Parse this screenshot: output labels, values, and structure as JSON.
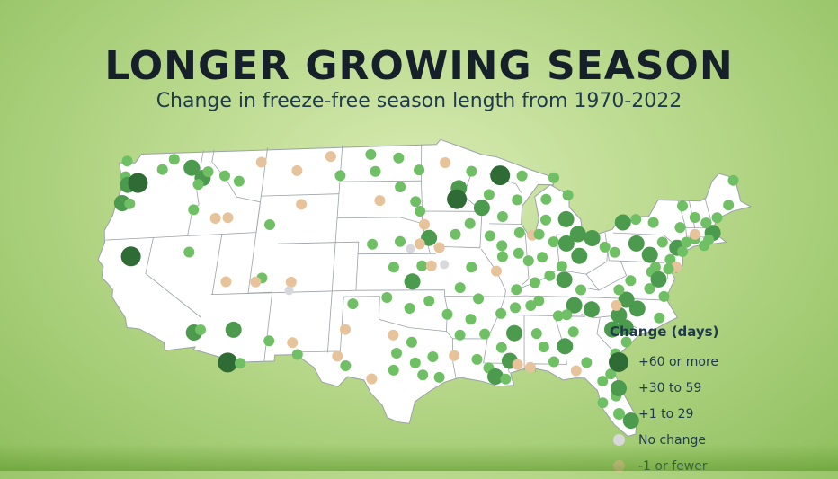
{
  "title": "LONGER GROWING SEASON",
  "subtitle": "Change in freeze-free season length from 1970-2022",
  "legend": {
    "title": "Change (days)",
    "items": [
      {
        "key": "c60",
        "label": "+60 or more",
        "color": "#2f6b34"
      },
      {
        "key": "c30",
        "label": "+30 to 59",
        "color": "#4c9a4d"
      },
      {
        "key": "c1",
        "label": "+1 to 29",
        "color": "#6fbf64"
      },
      {
        "key": "c0",
        "label": "No change",
        "color": "#d6d8dc"
      },
      {
        "key": "cn",
        "label": "-1 or fewer",
        "color": "#e6c39a"
      }
    ]
  },
  "colors": {
    "land": "#ffffff",
    "state_border": "#9aa2a8",
    "background": "#b9d98c"
  },
  "stations": [
    [
      "c1",
      -124.0,
      48.5
    ],
    [
      "c1",
      -123.8,
      47.2
    ],
    [
      "c30",
      -123.4,
      46.5
    ],
    [
      "c60",
      -122.5,
      46.6
    ],
    [
      "c30",
      -123.5,
      45.0
    ],
    [
      "c1",
      -122.8,
      44.9
    ],
    [
      "c1",
      -120.5,
      47.6
    ],
    [
      "c1",
      -119.6,
      48.4
    ],
    [
      "c30",
      -117.8,
      47.6
    ],
    [
      "c30",
      -116.6,
      46.7
    ],
    [
      "c1",
      -116.2,
      47.2
    ],
    [
      "c1",
      -116.9,
      46.2
    ],
    [
      "c1",
      -114.6,
      46.8
    ],
    [
      "c1",
      -113.2,
      46.3
    ],
    [
      "cn",
      -111.4,
      47.8
    ],
    [
      "c1",
      -116.9,
      44.1
    ],
    [
      "cn",
      -114.8,
      43.3
    ],
    [
      "cn",
      -113.7,
      43.3
    ],
    [
      "cn",
      -108.0,
      47.0
    ],
    [
      "cn",
      -105.0,
      48.1
    ],
    [
      "c1",
      -104.0,
      46.5
    ],
    [
      "cn",
      -107.3,
      44.2
    ],
    [
      "c1",
      -109.9,
      42.6
    ],
    [
      "c60",
      -121.6,
      40.5
    ],
    [
      "c1",
      -116.6,
      40.6
    ],
    [
      "cn",
      -113.0,
      38.0
    ],
    [
      "c1",
      -110.0,
      38.2
    ],
    [
      "cn",
      -107.5,
      37.8
    ],
    [
      "c0",
      -107.6,
      37.1
    ],
    [
      "cn",
      -110.5,
      37.9
    ],
    [
      "c30",
      -115.0,
      33.9
    ],
    [
      "c1",
      -114.5,
      34.1
    ],
    [
      "c30",
      -111.8,
      34.0
    ],
    [
      "c60",
      -111.9,
      31.3
    ],
    [
      "c1",
      -110.9,
      31.2
    ],
    [
      "c1",
      -106.4,
      31.8
    ],
    [
      "cn",
      -106.9,
      32.8
    ],
    [
      "c1",
      -108.8,
      33.0
    ],
    [
      "c1",
      -102.2,
      35.9
    ],
    [
      "cn",
      -102.7,
      33.8
    ],
    [
      "cn",
      -103.2,
      31.6
    ],
    [
      "c1",
      -102.5,
      30.8
    ],
    [
      "cn",
      -100.4,
      29.7
    ],
    [
      "c1",
      -98.7,
      30.4
    ],
    [
      "c1",
      -98.5,
      31.8
    ],
    [
      "cn",
      -98.8,
      33.3
    ],
    [
      "c1",
      -97.3,
      32.7
    ],
    [
      "c1",
      -97.0,
      31.0
    ],
    [
      "c1",
      -96.4,
      30.0
    ],
    [
      "c1",
      -95.6,
      31.5
    ],
    [
      "c1",
      -95.1,
      29.8
    ],
    [
      "cn",
      -93.9,
      31.6
    ],
    [
      "c1",
      -93.4,
      33.3
    ],
    [
      "c1",
      -94.4,
      35.0
    ],
    [
      "c1",
      -92.5,
      34.6
    ],
    [
      "c1",
      -92.1,
      31.3
    ],
    [
      "c1",
      -91.2,
      30.6
    ],
    [
      "c1",
      -90.1,
      32.3
    ],
    [
      "c30",
      -89.5,
      31.2
    ],
    [
      "c30",
      -89.0,
      33.5
    ],
    [
      "cn",
      -88.9,
      30.9
    ],
    [
      "c1",
      -91.4,
      33.4
    ],
    [
      "c30",
      -90.7,
      29.9
    ],
    [
      "c1",
      -89.9,
      29.7
    ],
    [
      "c1",
      -86.7,
      32.4
    ],
    [
      "c1",
      -87.2,
      33.5
    ],
    [
      "cn",
      -87.9,
      30.7
    ],
    [
      "c1",
      -86.0,
      31.2
    ],
    [
      "c30",
      -85.0,
      32.5
    ],
    [
      "c1",
      -84.2,
      33.7
    ],
    [
      "c1",
      -83.4,
      31.2
    ],
    [
      "cn",
      -84.3,
      30.5
    ],
    [
      "c1",
      -82.3,
      29.7
    ],
    [
      "c1",
      -81.6,
      30.3
    ],
    [
      "c1",
      -82.5,
      27.9
    ],
    [
      "c1",
      -81.4,
      28.5
    ],
    [
      "c30",
      -80.5,
      26.5
    ],
    [
      "c1",
      -81.0,
      32.0
    ],
    [
      "c1",
      -80.0,
      33.0
    ],
    [
      "c30",
      -79.9,
      34.2
    ],
    [
      "c30",
      -81.0,
      34.0
    ],
    [
      "c30",
      -80.3,
      35.2
    ],
    [
      "c30",
      -78.7,
      35.8
    ],
    [
      "c1",
      -77.0,
      35.1
    ],
    [
      "c30",
      -79.5,
      36.5
    ],
    [
      "c1",
      -77.4,
      37.5
    ],
    [
      "c1",
      -76.3,
      36.9
    ],
    [
      "c1",
      -78.9,
      38.1
    ],
    [
      "c1",
      -80.0,
      37.3
    ],
    [
      "cn",
      -80.4,
      36.0
    ],
    [
      "c30",
      -82.5,
      35.6
    ],
    [
      "c30",
      -83.9,
      35.9
    ],
    [
      "c1",
      -84.6,
      35.1
    ],
    [
      "c1",
      -86.8,
      36.2
    ],
    [
      "c1",
      -85.3,
      35.0
    ],
    [
      "c1",
      -87.5,
      35.8
    ],
    [
      "c1",
      -88.8,
      35.6
    ],
    [
      "c1",
      -90.0,
      35.1
    ],
    [
      "c1",
      -88.6,
      37.1
    ],
    [
      "c1",
      -87.0,
      37.7
    ],
    [
      "c1",
      -85.7,
      38.3
    ],
    [
      "c30",
      -84.5,
      38.0
    ],
    [
      "c1",
      -83.2,
      37.2
    ],
    [
      "c1",
      -86.2,
      39.8
    ],
    [
      "c1",
      -87.4,
      39.5
    ],
    [
      "c1",
      -85.1,
      41.1
    ],
    [
      "cn",
      -86.9,
      41.6
    ],
    [
      "c1",
      -88.0,
      41.8
    ],
    [
      "c1",
      -89.6,
      40.7
    ],
    [
      "c1",
      -88.2,
      40.1
    ],
    [
      "c1",
      -90.6,
      41.5
    ],
    [
      "c1",
      -89.6,
      39.8
    ],
    [
      "cn",
      -90.2,
      38.6
    ],
    [
      "c1",
      -84.6,
      39.1
    ],
    [
      "c30",
      -83.0,
      40.0
    ],
    [
      "c30",
      -81.7,
      41.5
    ],
    [
      "c30",
      -84.0,
      41.0
    ],
    [
      "c1",
      -80.7,
      40.8
    ],
    [
      "c30",
      -82.9,
      41.8
    ],
    [
      "c30",
      -83.8,
      43.0
    ],
    [
      "c1",
      -85.6,
      42.9
    ],
    [
      "c1",
      -85.4,
      44.6
    ],
    [
      "c1",
      -83.4,
      45.0
    ],
    [
      "c1",
      -86.3,
      41.7
    ],
    [
      "c1",
      -84.5,
      46.4
    ],
    [
      "c1",
      -87.4,
      46.5
    ],
    [
      "c60",
      -89.4,
      46.5
    ],
    [
      "c1",
      -88.0,
      44.5
    ],
    [
      "c1",
      -89.4,
      43.1
    ],
    [
      "c1",
      -90.5,
      44.9
    ],
    [
      "c30",
      -91.2,
      43.8
    ],
    [
      "c1",
      -92.0,
      46.8
    ],
    [
      "c30",
      -93.2,
      45.4
    ],
    [
      "c60",
      -93.4,
      44.5
    ],
    [
      "cn",
      -94.4,
      47.5
    ],
    [
      "c1",
      -96.8,
      46.9
    ],
    [
      "c1",
      -98.7,
      47.9
    ],
    [
      "c1",
      -101.3,
      48.2
    ],
    [
      "c1",
      -100.8,
      46.8
    ],
    [
      "cn",
      -100.3,
      44.4
    ],
    [
      "c1",
      -97.1,
      44.3
    ],
    [
      "c1",
      -98.5,
      45.5
    ],
    [
      "c1",
      -96.7,
      43.5
    ],
    [
      "cn",
      -96.3,
      42.4
    ],
    [
      "c30",
      -95.9,
      41.3
    ],
    [
      "c1",
      -93.6,
      41.6
    ],
    [
      "c1",
      -92.3,
      42.5
    ],
    [
      "cn",
      -95.0,
      40.5
    ],
    [
      "c1",
      -98.4,
      41.0
    ],
    [
      "c0",
      -97.5,
      40.4
    ],
    [
      "c1",
      -100.8,
      40.8
    ],
    [
      "cn",
      -96.7,
      40.8
    ],
    [
      "c1",
      -96.5,
      39.0
    ],
    [
      "cn",
      -95.7,
      39.0
    ],
    [
      "c30",
      -97.3,
      37.7
    ],
    [
      "c1",
      -98.9,
      38.9
    ],
    [
      "c0",
      -94.6,
      39.1
    ],
    [
      "c1",
      -92.3,
      38.9
    ],
    [
      "c1",
      -93.3,
      37.2
    ],
    [
      "c1",
      -97.5,
      35.5
    ],
    [
      "c1",
      -95.9,
      36.1
    ],
    [
      "c1",
      -99.4,
      36.4
    ],
    [
      "c1",
      -91.8,
      36.3
    ],
    [
      "c1",
      -77.6,
      43.2
    ],
    [
      "c1",
      -76.1,
      43.0
    ],
    [
      "c1",
      -73.8,
      42.7
    ],
    [
      "c30",
      -74.4,
      41.0
    ],
    [
      "c1",
      -75.2,
      40.0
    ],
    [
      "c30",
      -76.9,
      40.3
    ],
    [
      "c30",
      -77.9,
      41.2
    ],
    [
      "c1",
      -79.9,
      40.4
    ],
    [
      "c30",
      -78.8,
      42.9
    ],
    [
      "c1",
      -75.6,
      41.4
    ],
    [
      "c1",
      -73.2,
      44.5
    ],
    [
      "c1",
      -72.3,
      43.6
    ],
    [
      "c30",
      -71.0,
      42.4
    ],
    [
      "c1",
      -71.5,
      41.8
    ],
    [
      "c1",
      -72.7,
      41.8
    ],
    [
      "c1",
      -70.3,
      43.7
    ],
    [
      "c1",
      -69.0,
      44.8
    ],
    [
      "c1",
      -68.0,
      46.9
    ],
    [
      "c1",
      -71.4,
      43.2
    ],
    [
      "cn",
      -72.6,
      42.2
    ],
    [
      "c1",
      -74.0,
      40.7
    ],
    [
      "cn",
      -74.8,
      39.4
    ],
    [
      "c1",
      -76.6,
      39.3
    ],
    [
      "c1",
      -77.0,
      38.9
    ],
    [
      "c1",
      -75.5,
      39.2
    ],
    [
      "c30",
      -76.5,
      38.3
    ],
    [
      "c1",
      -73.5,
      41.5
    ],
    [
      "c1",
      -72.0,
      41.3
    ]
  ]
}
